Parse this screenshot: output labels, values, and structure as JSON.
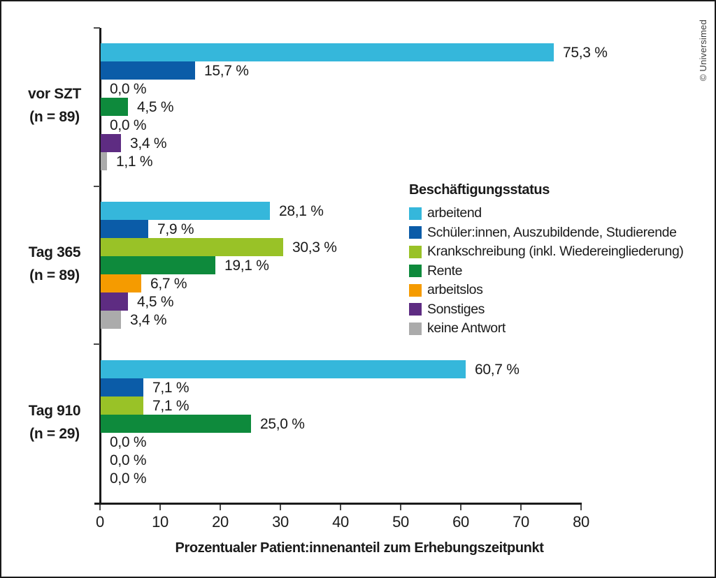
{
  "watermark": {
    "text": "© Universimed"
  },
  "chart_data": {
    "type": "bar",
    "orientation": "horizontal",
    "title": "",
    "xlabel": "Prozentualer Patient:innenanteil zum Erhebungszeitpunkt",
    "ylabel": "",
    "xlim": [
      0,
      80
    ],
    "xticks": [
      "0",
      "10",
      "20",
      "30",
      "40",
      "50",
      "60",
      "70",
      "80"
    ],
    "grid": false,
    "legend": {
      "title": "Beschäftigungsstatus",
      "position": "center-right",
      "entries": [
        {
          "label": "arbeitend",
          "color": "#35B7DB"
        },
        {
          "label": "Schüler:innen, Auszubildende, Studierende",
          "color": "#0B5CA8"
        },
        {
          "label": "Krankschreibung (inkl. Wiedereingliederung)",
          "color": "#99C227"
        },
        {
          "label": "Rente",
          "color": "#0E8A3C"
        },
        {
          "label": "arbeitslos",
          "color": "#F59B00"
        },
        {
          "label": "Sonstiges",
          "color": "#5E2C82"
        },
        {
          "label": "keine Antwort",
          "color": "#ABABAB"
        }
      ]
    },
    "groups": [
      {
        "label": "vor SZT",
        "sublabel": "(n = 89)",
        "values": [
          75.3,
          15.7,
          0.0,
          4.5,
          0.0,
          3.4,
          1.1
        ],
        "display_labels": [
          "75,3 %",
          "15,7 %",
          "0,0 %",
          "4,5 %",
          "0,0 %",
          "3,4 %",
          "1,1 %"
        ]
      },
      {
        "label": "Tag 365",
        "sublabel": "(n = 89)",
        "values": [
          28.1,
          7.9,
          30.3,
          19.1,
          6.7,
          4.5,
          3.4
        ],
        "display_labels": [
          "28,1 %",
          "7,9 %",
          "30,3 %",
          "19,1 %",
          "6,7 %",
          "4,5 %",
          "3,4 %"
        ]
      },
      {
        "label": "Tag 910",
        "sublabel": "(n = 29)",
        "values": [
          60.7,
          7.1,
          7.1,
          25.0,
          0.0,
          0.0,
          0.0
        ],
        "display_labels": [
          "60,7 %",
          "7,1 %",
          "7,1 %",
          "25,0 %",
          "0,0 %",
          "0,0 %",
          "0,0 %"
        ]
      }
    ]
  }
}
